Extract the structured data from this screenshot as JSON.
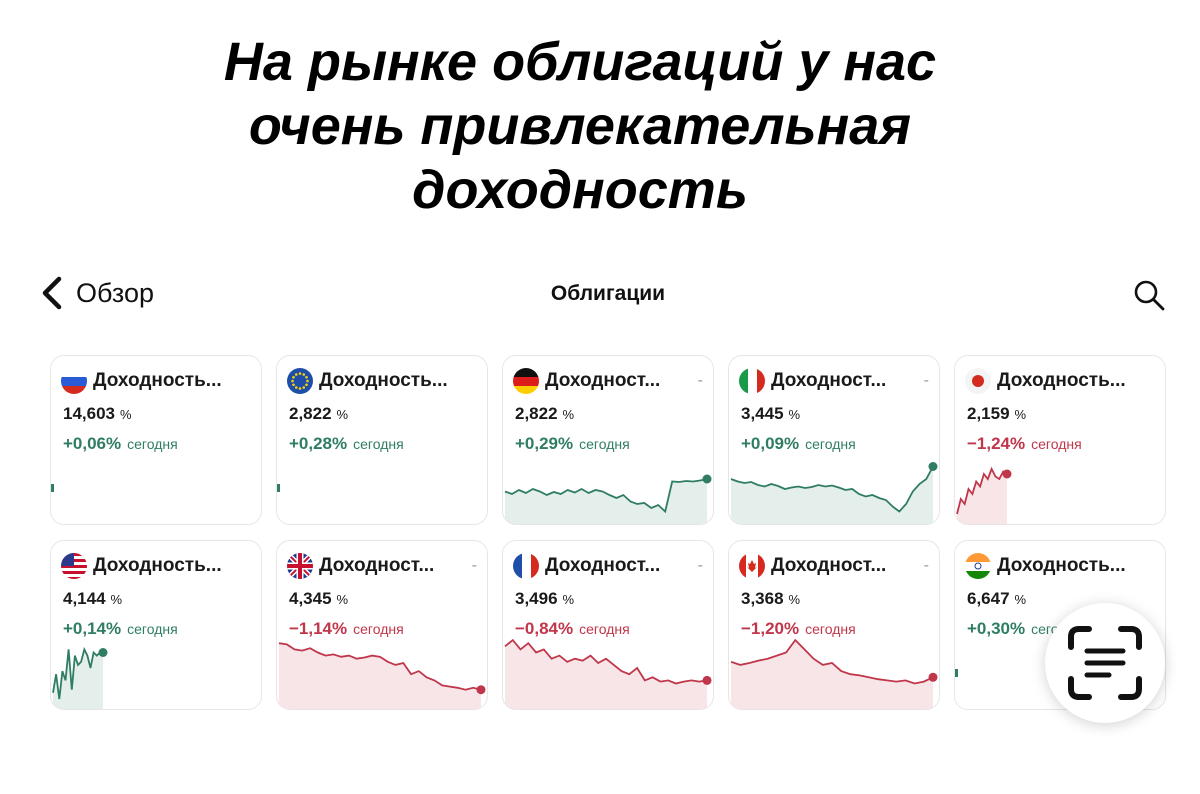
{
  "headline": {
    "line1": "На рынке облигаций у нас",
    "line2": "очень привлекательная",
    "line3": "доходность"
  },
  "nav": {
    "back_label": "Обзор",
    "title": "Облигации",
    "back_icon": "chevron-left-icon",
    "search_icon": "search-icon"
  },
  "colors": {
    "positive": "#2f7d62",
    "negative": "#c0364a"
  },
  "cards": [
    {
      "country": "russia",
      "name": "Доходность...",
      "value": "14,603",
      "unit": "%",
      "change": "+0,06%",
      "today": "сегодня",
      "trend": "up",
      "menu": "",
      "spark": []
    },
    {
      "country": "eu",
      "name": "Доходность...",
      "value": "2,822",
      "unit": "%",
      "change": "+0,28%",
      "today": "сегодня",
      "trend": "up",
      "menu": "",
      "spark": []
    },
    {
      "country": "germany",
      "name": "Доходност...",
      "value": "2,822",
      "unit": "%",
      "change": "+0,29%",
      "today": "сегодня",
      "trend": "up",
      "menu": "-",
      "spark": [
        0.55,
        0.6,
        0.52,
        0.58,
        0.5,
        0.55,
        0.62,
        0.56,
        0.6,
        0.52,
        0.57,
        0.5,
        0.58,
        0.52,
        0.55,
        0.62,
        0.68,
        0.62,
        0.75,
        0.8,
        0.78,
        0.88,
        0.82,
        0.95,
        0.35,
        0.36,
        0.34,
        0.35,
        0.33,
        0.3
      ]
    },
    {
      "country": "italy",
      "name": "Доходност...",
      "value": "3,445",
      "unit": "%",
      "change": "+0,09%",
      "today": "сегодня",
      "trend": "up",
      "menu": "-",
      "spark": [
        0.3,
        0.35,
        0.38,
        0.36,
        0.42,
        0.45,
        0.4,
        0.44,
        0.5,
        0.47,
        0.45,
        0.48,
        0.46,
        0.42,
        0.45,
        0.43,
        0.47,
        0.52,
        0.5,
        0.6,
        0.65,
        0.62,
        0.68,
        0.72,
        0.85,
        0.95,
        0.8,
        0.55,
        0.4,
        0.3,
        0.05
      ]
    },
    {
      "country": "japan",
      "name": "Доходность...",
      "value": "2,159",
      "unit": "%",
      "change": "−1,24%",
      "today": "сегодня",
      "trend": "down",
      "menu": "",
      "spark": [
        1.0,
        0.7,
        0.8,
        0.5,
        0.6,
        0.35,
        0.45,
        0.2,
        0.3,
        0.1,
        0.25,
        0.3,
        0.15,
        0.2
      ]
    },
    {
      "country": "usa",
      "name": "Доходность...",
      "value": "4,144",
      "unit": "%",
      "change": "+0,14%",
      "today": "сегодня",
      "trend": "up",
      "menu": "",
      "spark": [
        0.9,
        0.6,
        1.0,
        0.55,
        0.7,
        0.2,
        0.85,
        0.3,
        0.45,
        0.4,
        0.2,
        0.3,
        0.5,
        0.25,
        0.3,
        0.25,
        0.25
      ]
    },
    {
      "country": "uk",
      "name": "Доходност...",
      "value": "4,345",
      "unit": "%",
      "change": "−1,14%",
      "today": "сегодня",
      "trend": "down",
      "menu": "-",
      "spark": [
        0.1,
        0.12,
        0.2,
        0.22,
        0.18,
        0.25,
        0.3,
        0.28,
        0.32,
        0.3,
        0.35,
        0.33,
        0.3,
        0.32,
        0.4,
        0.45,
        0.42,
        0.6,
        0.55,
        0.65,
        0.7,
        0.78,
        0.8,
        0.82,
        0.85,
        0.82,
        0.85
      ]
    },
    {
      "country": "france",
      "name": "Доходност...",
      "value": "3,496",
      "unit": "%",
      "change": "−0,84%",
      "today": "сегодня",
      "trend": "down",
      "menu": "-",
      "spark": [
        0.15,
        0.05,
        0.2,
        0.1,
        0.25,
        0.2,
        0.35,
        0.3,
        0.4,
        0.35,
        0.38,
        0.3,
        0.42,
        0.35,
        0.45,
        0.55,
        0.6,
        0.5,
        0.7,
        0.65,
        0.72,
        0.7,
        0.75,
        0.72,
        0.7,
        0.72,
        0.7
      ]
    },
    {
      "country": "canada",
      "name": "Доходност...",
      "value": "3,368",
      "unit": "%",
      "change": "−1,20%",
      "today": "сегодня",
      "trend": "down",
      "menu": "-",
      "spark": [
        0.4,
        0.45,
        0.42,
        0.38,
        0.35,
        0.3,
        0.25,
        0.05,
        0.2,
        0.35,
        0.45,
        0.42,
        0.55,
        0.6,
        0.62,
        0.65,
        0.68,
        0.7,
        0.72,
        0.7,
        0.75,
        0.72,
        0.65
      ]
    },
    {
      "country": "india",
      "name": "Доходность...",
      "value": "6,647",
      "unit": "%",
      "change": "+0,30%",
      "today": "сегодня",
      "trend": "up",
      "menu": "",
      "spark": []
    }
  ],
  "scan_button": {
    "icon": "text-scan-icon"
  }
}
